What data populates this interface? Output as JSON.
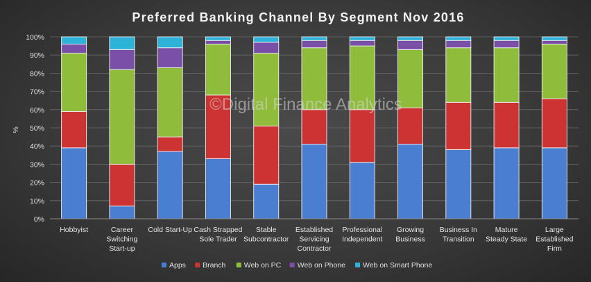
{
  "chart_data": {
    "type": "bar",
    "stacked": true,
    "percent": true,
    "title": "Preferred Banking Channel By Segment Nov 2016",
    "ylabel": "%",
    "xlabel": "",
    "ylim": [
      0,
      100
    ],
    "yticks": [
      "0%",
      "10%",
      "20%",
      "30%",
      "40%",
      "50%",
      "60%",
      "70%",
      "80%",
      "90%",
      "100%"
    ],
    "watermark": "©Digital Finance Analytics",
    "legend_position": "bottom",
    "categories": [
      [
        "Hobbyist"
      ],
      [
        "Career",
        "Switching",
        "Start-up"
      ],
      [
        "Cold Start-Up"
      ],
      [
        "Cash Strapped",
        "Sole Trader"
      ],
      [
        "Stable",
        "Subcontractor"
      ],
      [
        "Established",
        "Servicing",
        "Contractor"
      ],
      [
        "Professional",
        "Independent"
      ],
      [
        "Growing",
        "Business"
      ],
      [
        "Business In",
        "Transition"
      ],
      [
        "Mature",
        "Steady State"
      ],
      [
        "Large",
        "Established",
        "Firm"
      ]
    ],
    "series": [
      {
        "name": "Apps",
        "color": "#4a7ed0",
        "values": [
          39,
          7,
          37,
          33,
          19,
          41,
          31,
          41,
          38,
          39,
          39
        ]
      },
      {
        "name": "Branch",
        "color": "#cc3333",
        "values": [
          20,
          23,
          8,
          35,
          32,
          19,
          29,
          20,
          26,
          25,
          27
        ]
      },
      {
        "name": "Web on PC",
        "color": "#8fbc3b",
        "values": [
          32,
          52,
          38,
          28,
          40,
          34,
          35,
          32,
          30,
          30,
          30
        ]
      },
      {
        "name": "Web on Phone",
        "color": "#7a4fa8",
        "values": [
          5,
          11,
          11,
          2,
          6,
          4,
          3,
          5,
          4,
          4,
          2
        ]
      },
      {
        "name": "Web on Smart Phone",
        "color": "#2db3d8",
        "values": [
          4,
          7,
          6,
          2,
          3,
          2,
          2,
          2,
          2,
          2,
          2
        ]
      }
    ]
  }
}
